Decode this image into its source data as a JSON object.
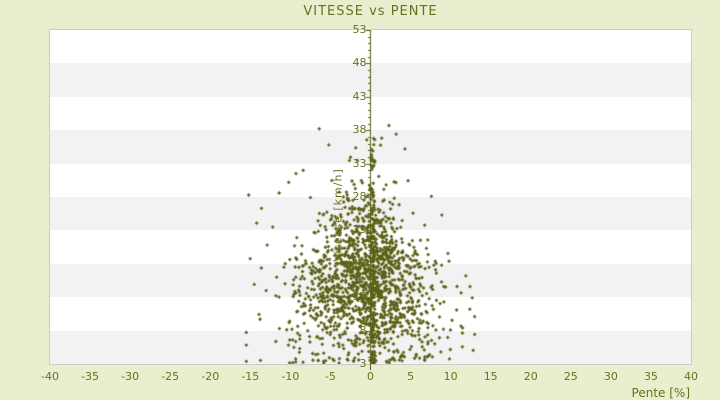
{
  "colors": {
    "background": "#E9EECF",
    "plot_background": "#FFFFFF",
    "band": "#F2F2F2",
    "plot_border": "#CCCCCC",
    "text": "#6B7021",
    "points_and_axis": "#5C6117"
  },
  "chart_data": {
    "type": "scatter",
    "title": "VITESSE vs PENTE",
    "xlabel": "Pente [%]",
    "ylabel": "Vitesse [km/h]",
    "xlim": [
      -40,
      40
    ],
    "ylim": [
      3,
      53
    ],
    "x_ticks": [
      -40,
      -35,
      -30,
      -25,
      -20,
      -15,
      -10,
      -5,
      0,
      5,
      10,
      15,
      20,
      25,
      30,
      35,
      40
    ],
    "y_ticks": [
      3,
      8,
      13,
      18,
      23,
      28,
      33,
      38,
      43,
      48,
      53
    ],
    "marker": "diamond",
    "marker_size_px": 4,
    "point_color": "#5C6117",
    "grid": "horizontal-alternating-bands",
    "legend": "none",
    "distribution": {
      "description": "Dense cloud of ~1800 speed-vs-slope samples centered near pente -1% and vitesse ~15 km/h; horizontal spread shrinks as speed rises (funnel shape, +/-13% at 10 km/h down to +/-3% at 35 km/h); extra vertical stem of points at pente ~0 reaching ~37 km/h; overall extent pente -15..13, vitesse 3..39",
      "n_points": 1550,
      "seed": 1337,
      "x_mean": -0.8,
      "y_mean": 15.2,
      "y_std": 6.3,
      "y_min": 3.1,
      "y_max": 37.5,
      "sigma_a": 6.3,
      "sigma_b": 0.145,
      "sigma_min": 1.0,
      "x_min": -15.5,
      "x_max": 13,
      "stem": {
        "seed": 77,
        "n": 150,
        "x0": 0.05,
        "width": 0.5,
        "height": 34,
        "power": 1.4
      }
    },
    "outliers": [
      [
        -15.2,
        28.3
      ],
      [
        -14.2,
        24.1
      ],
      [
        -13.6,
        26.3
      ],
      [
        -12.9,
        20.8
      ],
      [
        -12.2,
        23.5
      ],
      [
        -11.8,
        13.2
      ],
      [
        -11.4,
        28.6
      ],
      [
        -10.8,
        17.5
      ],
      [
        -10.2,
        30.2
      ],
      [
        -9.8,
        8.2
      ],
      [
        -9.3,
        31.5
      ],
      [
        -8.4,
        32.0
      ],
      [
        -6.4,
        38.2
      ],
      [
        -5.2,
        35.8
      ],
      [
        -2.1,
        3.4
      ],
      [
        0.5,
        3.2
      ],
      [
        1.4,
        36.8
      ],
      [
        2.3,
        38.7
      ],
      [
        3.2,
        37.4
      ],
      [
        3.8,
        4.1
      ],
      [
        4.3,
        35.2
      ],
      [
        7.6,
        28.1
      ],
      [
        8.9,
        25.3
      ],
      [
        9.8,
        18.4
      ],
      [
        10.8,
        14.6
      ],
      [
        11.5,
        8.4
      ],
      [
        11.9,
        16.2
      ],
      [
        12.4,
        11.2
      ],
      [
        12.7,
        12.9
      ],
      [
        13.0,
        10.1
      ]
    ]
  }
}
